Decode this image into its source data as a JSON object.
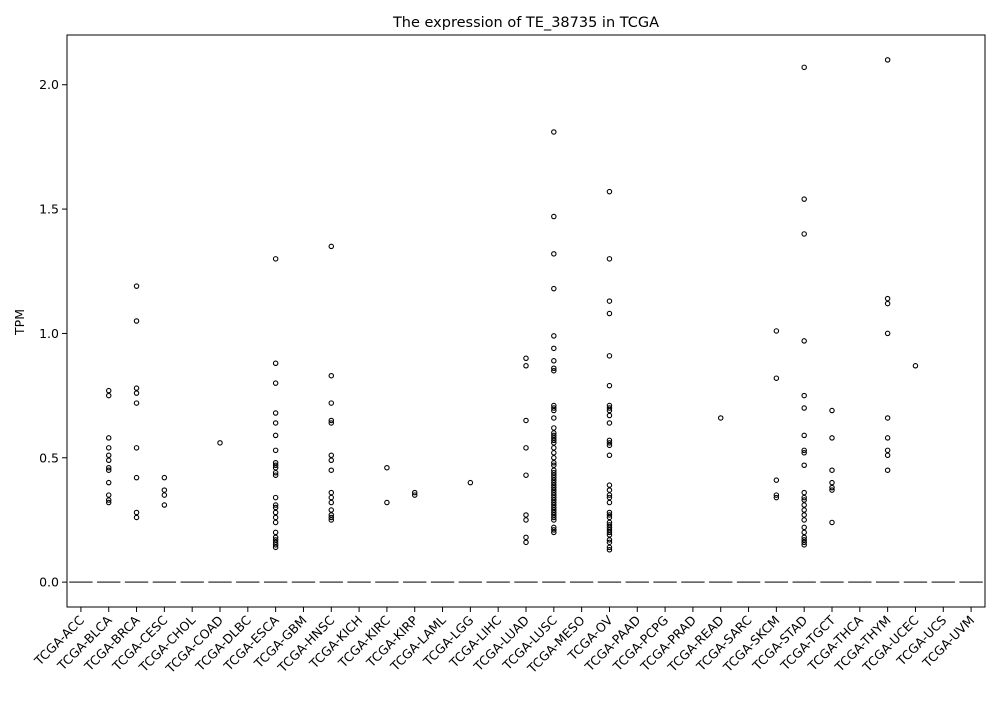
{
  "chart_data": {
    "type": "boxplot",
    "title": "The expression of TE_38735 in TCGA",
    "xlabel": "",
    "ylabel": "TPM",
    "ylim": [
      -0.1,
      2.2
    ],
    "yticks": [
      "0.0",
      "0.5",
      "1.0",
      "1.5",
      "2.0"
    ],
    "grid": false,
    "legend": "none",
    "categories": [
      "TCGA-ACC",
      "TCGA-BLCA",
      "TCGA-BRCA",
      "TCGA-CESC",
      "TCGA-CHOL",
      "TCGA-COAD",
      "TCGA-DLBC",
      "TCGA-ESCA",
      "TCGA-GBM",
      "TCGA-HNSC",
      "TCGA-KICH",
      "TCGA-KIRC",
      "TCGA-KIRP",
      "TCGA-LAML",
      "TCGA-LGG",
      "TCGA-LIHC",
      "TCGA-LUAD",
      "TCGA-LUSC",
      "TCGA-MESO",
      "TCGA-OV",
      "TCGA-PAAD",
      "TCGA-PCPG",
      "TCGA-PRAD",
      "TCGA-READ",
      "TCGA-SARC",
      "TCGA-SKCM",
      "TCGA-STAD",
      "TCGA-TGCT",
      "TCGA-THCA",
      "TCGA-THYM",
      "TCGA-UCEC",
      "TCGA-UCS",
      "TCGA-UVM"
    ],
    "median": [
      0,
      0,
      0,
      0,
      0,
      0,
      0,
      0,
      0,
      0,
      0,
      0,
      0,
      0,
      0,
      0,
      0,
      0,
      0,
      0,
      0,
      0,
      0,
      0,
      0,
      0,
      0,
      0,
      0,
      0,
      0,
      0,
      0
    ],
    "outliers": [
      [],
      [
        0.77,
        0.75,
        0.58,
        0.54,
        0.51,
        0.49,
        0.46,
        0.45,
        0.4,
        0.35,
        0.33,
        0.32
      ],
      [
        1.19,
        1.05,
        0.78,
        0.76,
        0.72,
        0.54,
        0.42,
        0.28,
        0.26
      ],
      [
        0.42,
        0.37,
        0.35,
        0.31
      ],
      [],
      [
        0.56
      ],
      [],
      [
        1.3,
        0.88,
        0.8,
        0.68,
        0.64,
        0.59,
        0.53,
        0.48,
        0.47,
        0.46,
        0.44,
        0.43,
        0.34,
        0.31,
        0.3,
        0.28,
        0.26,
        0.24,
        0.2,
        0.18,
        0.17,
        0.16,
        0.15,
        0.14
      ],
      [],
      [
        1.35,
        0.83,
        0.72,
        0.65,
        0.64,
        0.51,
        0.49,
        0.45,
        0.36,
        0.34,
        0.32,
        0.29,
        0.27,
        0.26,
        0.25
      ],
      [],
      [
        0.46,
        0.32
      ],
      [
        0.36,
        0.35
      ],
      [],
      [
        0.4
      ],
      [],
      [
        0.9,
        0.87,
        0.65,
        0.54,
        0.43,
        0.27,
        0.25,
        0.18,
        0.16
      ],
      [
        1.81,
        1.47,
        1.32,
        1.18,
        0.99,
        0.94,
        0.89,
        0.86,
        0.85,
        0.71,
        0.7,
        0.69,
        0.66,
        0.62,
        0.6,
        0.59,
        0.58,
        0.57,
        0.56,
        0.54,
        0.52,
        0.5,
        0.48,
        0.47,
        0.45,
        0.44,
        0.43,
        0.42,
        0.41,
        0.4,
        0.39,
        0.38,
        0.37,
        0.36,
        0.35,
        0.34,
        0.33,
        0.32,
        0.31,
        0.3,
        0.29,
        0.28,
        0.27,
        0.26,
        0.25,
        0.22,
        0.21,
        0.2
      ],
      [],
      [
        1.57,
        1.3,
        1.13,
        1.08,
        0.91,
        0.79,
        0.71,
        0.7,
        0.69,
        0.67,
        0.64,
        0.57,
        0.56,
        0.55,
        0.51,
        0.39,
        0.37,
        0.35,
        0.34,
        0.32,
        0.28,
        0.27,
        0.26,
        0.24,
        0.23,
        0.22,
        0.21,
        0.2,
        0.19,
        0.17,
        0.16,
        0.14,
        0.13
      ],
      [],
      [],
      [],
      [
        0.66
      ],
      [],
      [
        1.01,
        0.82,
        0.41,
        0.35,
        0.34
      ],
      [
        2.07,
        1.54,
        1.4,
        0.97,
        0.75,
        0.7,
        0.59,
        0.53,
        0.52,
        0.47,
        0.36,
        0.34,
        0.33,
        0.31,
        0.29,
        0.27,
        0.25,
        0.22,
        0.2,
        0.18,
        0.17,
        0.16,
        0.15
      ],
      [
        0.69,
        0.58,
        0.45,
        0.4,
        0.38,
        0.37,
        0.24
      ],
      [],
      [
        2.1,
        1.14,
        1.12,
        1.0,
        0.66,
        0.58,
        0.53,
        0.51,
        0.45
      ],
      [
        0.87
      ],
      [],
      []
    ],
    "colors": {
      "marker_edge": "#000000",
      "median_line": "#555555",
      "axis": "#000000"
    }
  }
}
